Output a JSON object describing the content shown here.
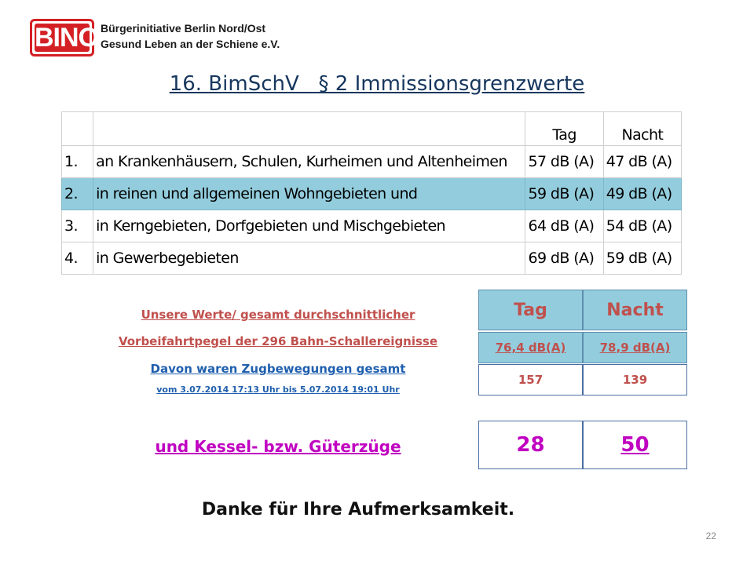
{
  "logo": {
    "acronym": "BINO",
    "line1": "Bürgerinitiative Berlin Nord/Ost",
    "line2": "Gesund Leben an der Schiene e.V."
  },
  "title": "16. BimSchV   § 2 Immissionsgrenzwerte",
  "limits_table": {
    "columns": [
      "",
      "",
      "Tag",
      "Nacht"
    ],
    "rows": [
      {
        "num": "1.",
        "desc": "an Krankenhäusern, Schulen, Kurheimen und Altenheimen",
        "tag": "57 dB (A)",
        "nacht": "47 dB (A)"
      },
      {
        "num": "2.",
        "desc": "in reinen und allgemeinen Wohngebieten und",
        "tag": "59 dB (A)",
        "nacht": "49 dB (A)"
      },
      {
        "num": "3.",
        "desc": "in Kerngebieten, Dorfgebieten und Mischgebieten",
        "tag": "64 dB (A)",
        "nacht": "54 dB (A)"
      },
      {
        "num": "4.",
        "desc": "in Gewerbegebieten",
        "tag": "69 dB (A)",
        "nacht": "59 dB (A)"
      }
    ],
    "highlight_color": "#93cddd"
  },
  "measurements": {
    "line1": "Unsere Werte/ gesamt durchschnittlicher",
    "line2": "Vorbeifahrtpegel der 296 Bahn-Schallereignisse",
    "line3": "Davon waren Zugbewegungen gesamt",
    "line4": "vom 3.07.2014 17:13 Uhr bis 5.07.2014 19:01 Uhr",
    "line5": "und Kessel- bzw. Güterzüge",
    "header_tag": "Tag",
    "header_nacht": "Nacht",
    "level_tag": "76,4 dB(A)",
    "level_nacht": "78,9 dB(A)",
    "moves_tag": "157",
    "moves_nacht": "139",
    "freight_tag": "28",
    "freight_nacht": "50"
  },
  "thanks": "Danke für Ihre Aufmerksamkeit.",
  "page_number": "22",
  "colors": {
    "red": "#c0504d",
    "blue": "#1f5fae",
    "magenta": "#c000c0",
    "logo_red": "#d42024"
  }
}
